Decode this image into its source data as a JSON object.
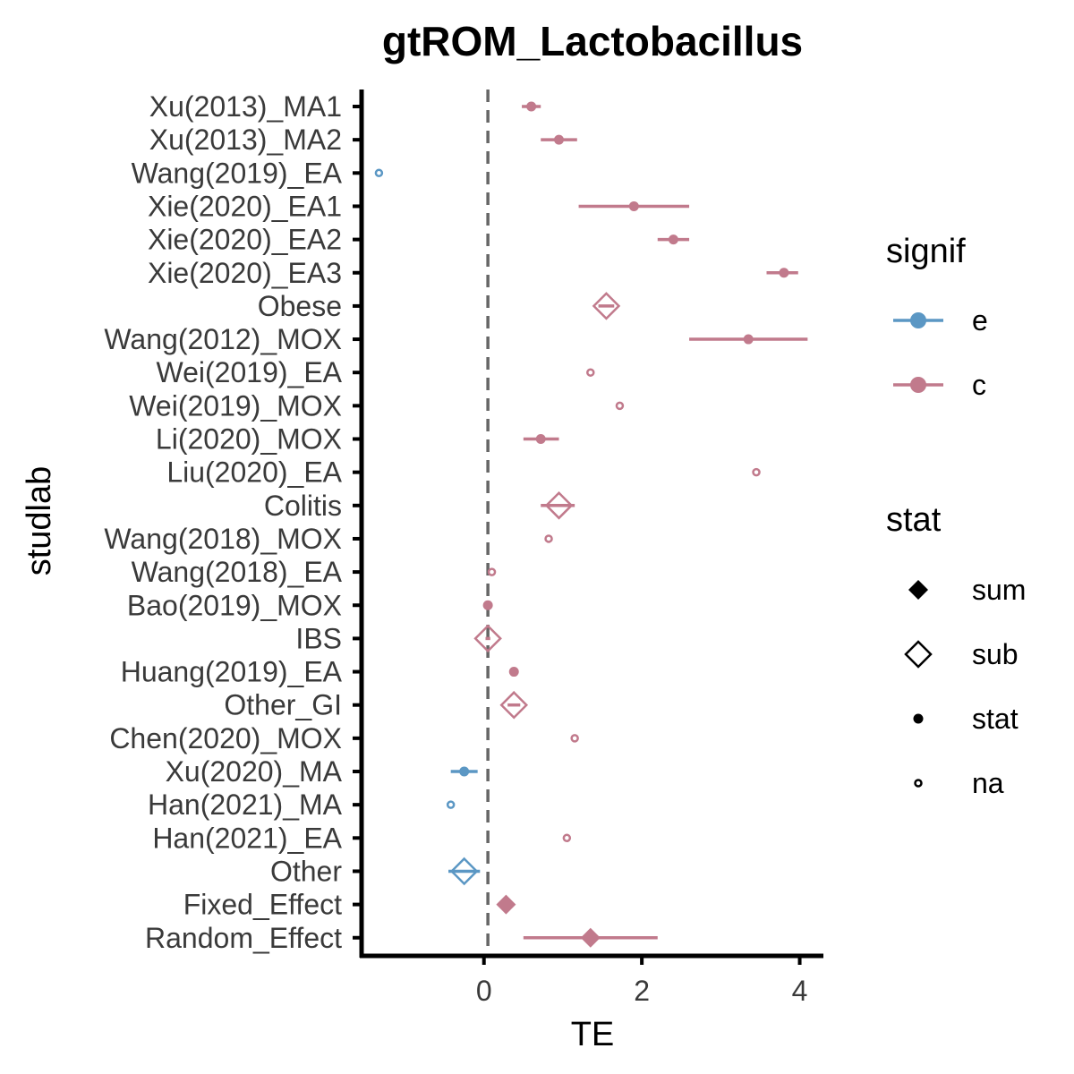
{
  "chart_data": {
    "type": "forest",
    "title": "gtROM_Lactobacillus",
    "xlabel": "TE",
    "ylabel": "studlab",
    "xlim": [
      -1.55,
      4.3
    ],
    "x_ticks": [
      0,
      2,
      4
    ],
    "x_tick_labels": [
      "0",
      "2",
      "4"
    ],
    "reference_line": 0.05,
    "grid": false,
    "colors": {
      "e": "#5b97c4",
      "c": "#c17a8c"
    },
    "legend_placement": "right",
    "legends": {
      "signif": {
        "title": "signif",
        "items": [
          {
            "key": "e",
            "label": "e"
          },
          {
            "key": "c",
            "label": "c"
          }
        ]
      },
      "stat": {
        "title": "stat",
        "items": [
          {
            "key": "sum",
            "label": "sum"
          },
          {
            "key": "sub",
            "label": "sub"
          },
          {
            "key": "stat",
            "label": "stat"
          },
          {
            "key": "na",
            "label": "na"
          }
        ]
      }
    },
    "rows": [
      {
        "label": "Xu(2013)_MA1",
        "te": 0.6,
        "lower": 0.48,
        "upper": 0.72,
        "signif": "c",
        "stat": "stat"
      },
      {
        "label": "Xu(2013)_MA2",
        "te": 0.95,
        "lower": 0.72,
        "upper": 1.18,
        "signif": "c",
        "stat": "stat"
      },
      {
        "label": "Wang(2019)_EA",
        "te": -1.33,
        "lower": null,
        "upper": null,
        "signif": "e",
        "stat": "na"
      },
      {
        "label": "Xie(2020)_EA1",
        "te": 1.9,
        "lower": 1.2,
        "upper": 2.6,
        "signif": "c",
        "stat": "stat"
      },
      {
        "label": "Xie(2020)_EA2",
        "te": 2.4,
        "lower": 2.2,
        "upper": 2.6,
        "signif": "c",
        "stat": "stat"
      },
      {
        "label": "Xie(2020)_EA3",
        "te": 3.8,
        "lower": 3.58,
        "upper": 3.98,
        "signif": "c",
        "stat": "stat"
      },
      {
        "label": "Obese",
        "te": 1.55,
        "lower": 1.45,
        "upper": 1.65,
        "signif": "c",
        "stat": "sub"
      },
      {
        "label": "Wang(2012)_MOX",
        "te": 3.35,
        "lower": 2.6,
        "upper": 4.1,
        "signif": "c",
        "stat": "stat"
      },
      {
        "label": "Wei(2019)_EA",
        "te": 1.35,
        "lower": null,
        "upper": null,
        "signif": "c",
        "stat": "na"
      },
      {
        "label": "Wei(2019)_MOX",
        "te": 1.72,
        "lower": null,
        "upper": null,
        "signif": "c",
        "stat": "na"
      },
      {
        "label": "Li(2020)_MOX",
        "te": 0.72,
        "lower": 0.5,
        "upper": 0.95,
        "signif": "c",
        "stat": "stat"
      },
      {
        "label": "Liu(2020)_EA",
        "te": 3.45,
        "lower": null,
        "upper": null,
        "signif": "c",
        "stat": "na"
      },
      {
        "label": "Colitis",
        "te": 0.95,
        "lower": 0.72,
        "upper": 1.15,
        "signif": "c",
        "stat": "sub"
      },
      {
        "label": "Wang(2018)_MOX",
        "te": 0.82,
        "lower": null,
        "upper": null,
        "signif": "c",
        "stat": "na"
      },
      {
        "label": "Wang(2018)_EA",
        "te": 0.1,
        "lower": null,
        "upper": null,
        "signif": "c",
        "stat": "na"
      },
      {
        "label": "Bao(2019)_MOX",
        "te": 0.05,
        "lower": null,
        "upper": null,
        "signif": "c",
        "stat": "stat"
      },
      {
        "label": "IBS",
        "te": 0.05,
        "lower": 0.02,
        "upper": 0.08,
        "signif": "c",
        "stat": "sub"
      },
      {
        "label": "Huang(2019)_EA",
        "te": 0.38,
        "lower": null,
        "upper": null,
        "signif": "c",
        "stat": "stat"
      },
      {
        "label": "Other_GI",
        "te": 0.38,
        "lower": 0.3,
        "upper": 0.46,
        "signif": "c",
        "stat": "sub"
      },
      {
        "label": "Chen(2020)_MOX",
        "te": 1.15,
        "lower": null,
        "upper": null,
        "signif": "c",
        "stat": "na"
      },
      {
        "label": "Xu(2020)_MA",
        "te": -0.25,
        "lower": -0.42,
        "upper": -0.08,
        "signif": "e",
        "stat": "stat"
      },
      {
        "label": "Han(2021)_MA",
        "te": -0.42,
        "lower": null,
        "upper": null,
        "signif": "e",
        "stat": "na"
      },
      {
        "label": "Han(2021)_EA",
        "te": 1.05,
        "lower": null,
        "upper": null,
        "signif": "c",
        "stat": "na"
      },
      {
        "label": "Other",
        "te": -0.25,
        "lower": -0.45,
        "upper": -0.05,
        "signif": "e",
        "stat": "sub"
      },
      {
        "label": "Fixed_Effect",
        "te": 0.28,
        "lower": null,
        "upper": null,
        "signif": "c",
        "stat": "sum"
      },
      {
        "label": "Random_Effect",
        "te": 1.35,
        "lower": 0.5,
        "upper": 2.2,
        "signif": "c",
        "stat": "sum"
      }
    ]
  }
}
